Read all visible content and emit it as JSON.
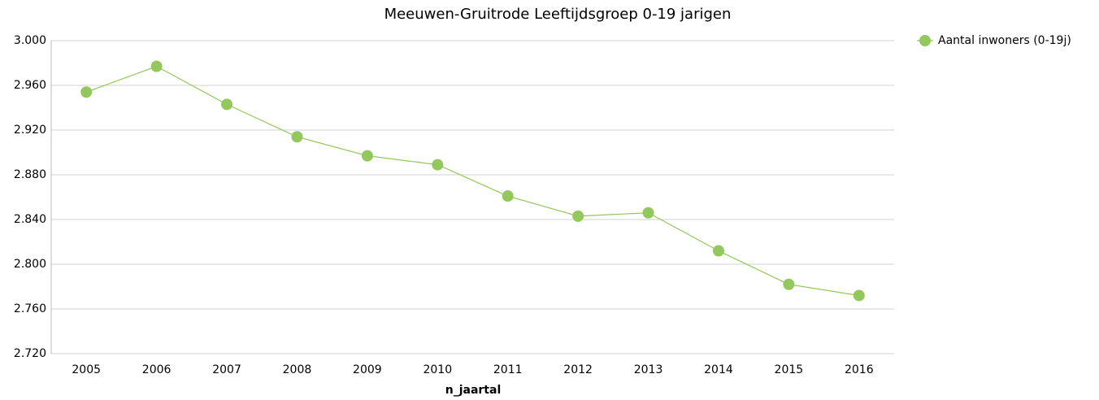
{
  "chart_data": {
    "type": "line",
    "title": "Meeuwen-Gruitrode  Leeftijdsgroep 0-19 jarigen",
    "x_label": "n_jaartal",
    "categories": [
      "2005",
      "2006",
      "2007",
      "2008",
      "2009",
      "2010",
      "2011",
      "2012",
      "2013",
      "2014",
      "2015",
      "2016"
    ],
    "series": [
      {
        "name": "Aantal inwoners (0-19j)",
        "color": "#92c85c",
        "values": [
          2954,
          2977,
          2943,
          2914,
          2897,
          2889,
          2861,
          2843,
          2846,
          2812,
          2782,
          2772
        ]
      }
    ],
    "ylim": [
      2720,
      3000
    ],
    "yticks": [
      {
        "value": 2720,
        "label": "2.720"
      },
      {
        "value": 2760,
        "label": "2.760"
      },
      {
        "value": 2800,
        "label": "2.800"
      },
      {
        "value": 2840,
        "label": "2.840"
      },
      {
        "value": 2880,
        "label": "2.880"
      },
      {
        "value": 2920,
        "label": "2.920"
      },
      {
        "value": 2960,
        "label": "2.960"
      },
      {
        "value": 3000,
        "label": "3.000"
      }
    ],
    "grid": true,
    "legend": "right"
  }
}
